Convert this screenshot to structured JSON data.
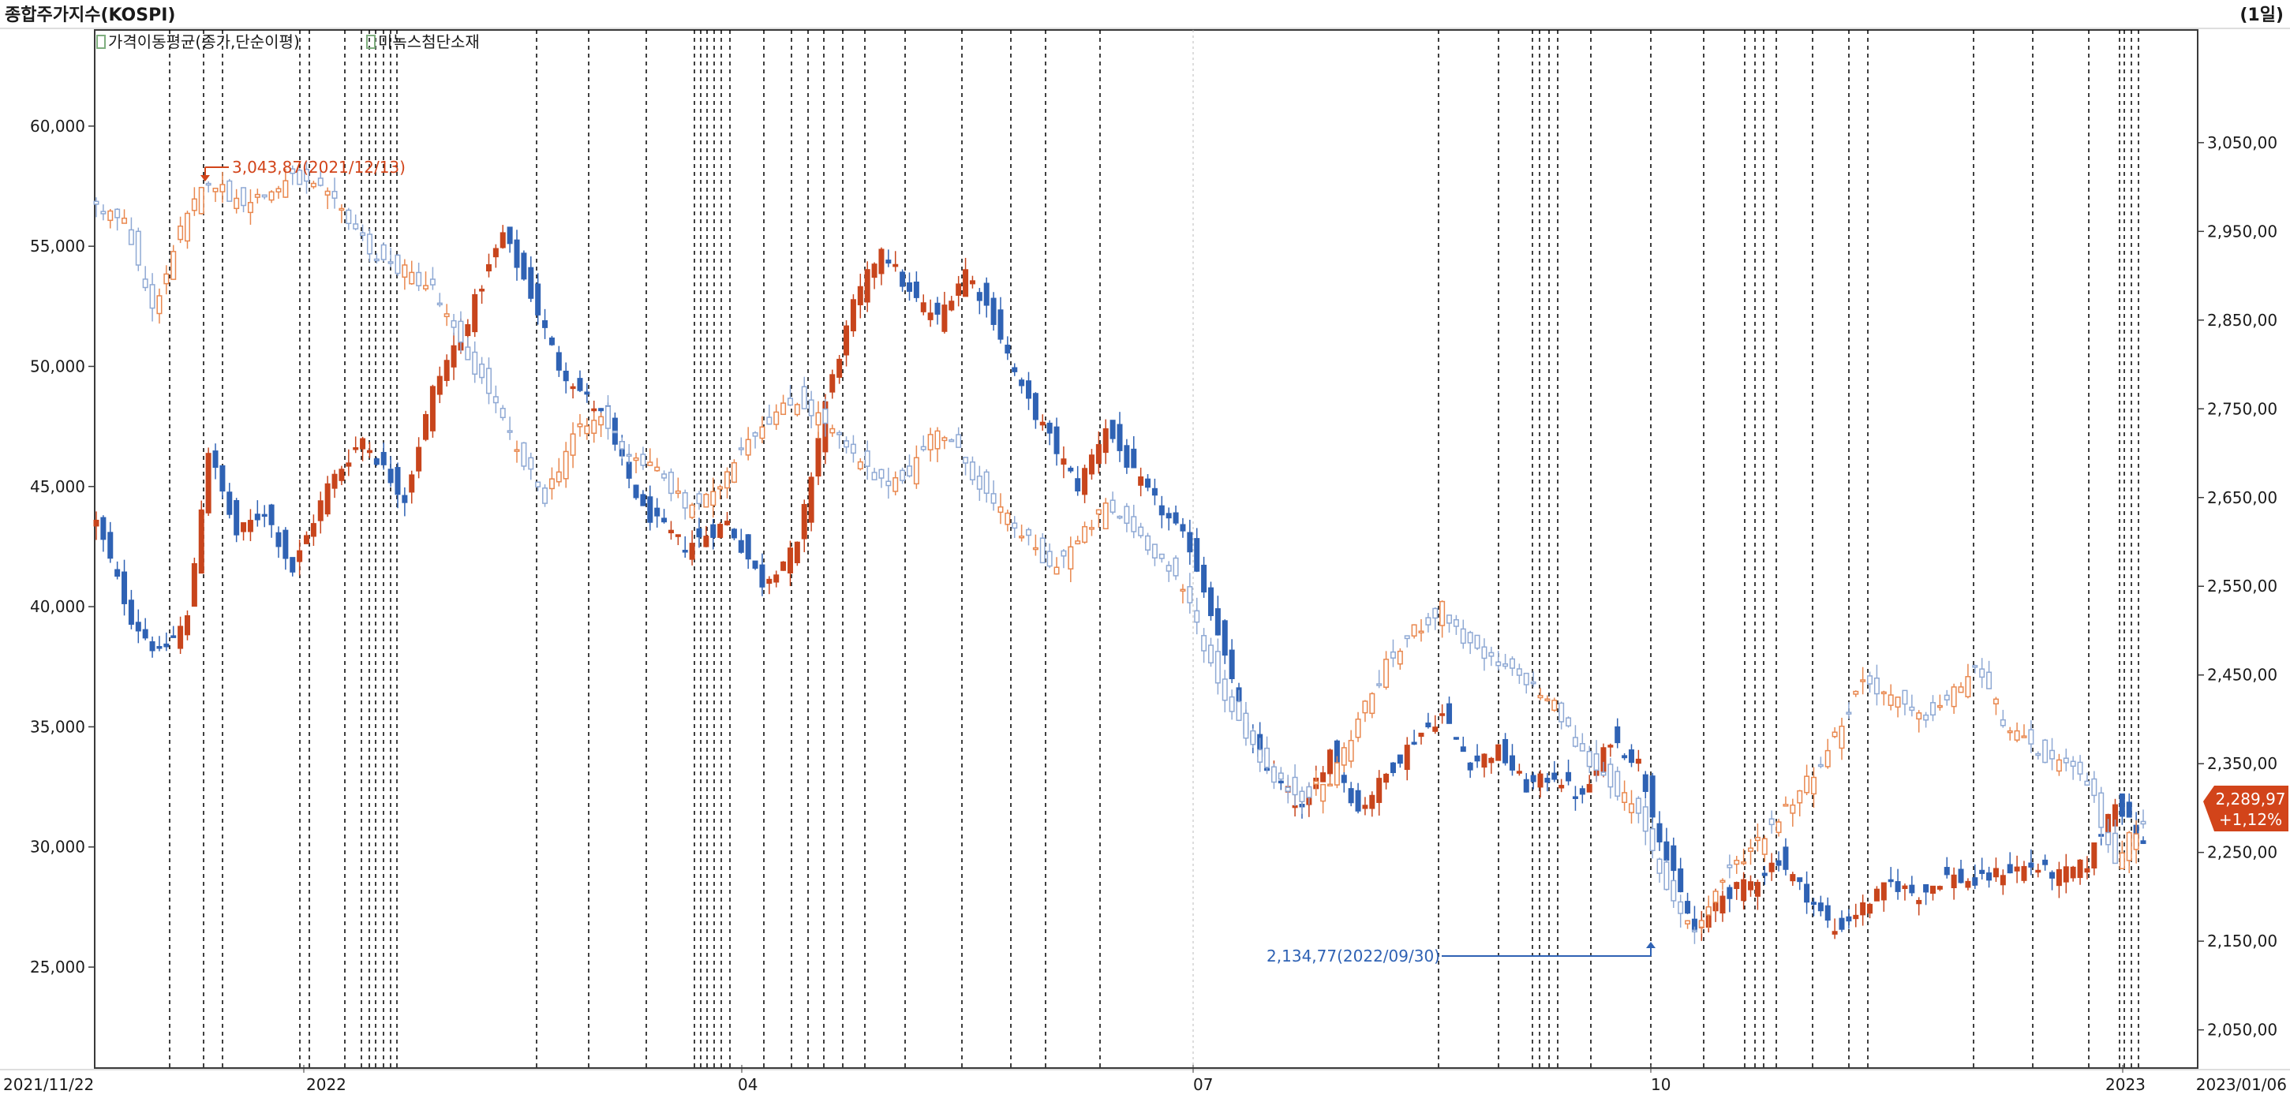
{
  "header": {
    "title": "종합주가지수(KOSPI)",
    "period": "(1일)"
  },
  "legend": [
    {
      "label": "가격이동평균(종가,단순이평)",
      "color": "#7fae7f"
    },
    {
      "label": "미녹스첨단소재",
      "color": "#7fae7f"
    }
  ],
  "colors": {
    "up": "#c8451c",
    "down": "#2f62b4",
    "up_light": "#e9884f",
    "down_light": "#8fa9d4",
    "grid": "#000000",
    "badge": "#d2441a"
  },
  "chart_data": {
    "type": "candlestick",
    "x_tick_labels": [
      "2021/11/22",
      "2022",
      "04",
      "07",
      "10",
      "2023",
      "2023/01/06"
    ],
    "left_axis": {
      "ticks": [
        25000,
        30000,
        35000,
        40000,
        45000,
        50000,
        55000,
        60000
      ],
      "tick_labels": [
        "25,000",
        "30,000",
        "35,000",
        "40,000",
        "45,000",
        "50,000",
        "55,000",
        "60,000"
      ],
      "range": [
        20800,
        64000
      ]
    },
    "right_axis": {
      "ticks": [
        2050,
        2150,
        2250,
        2350,
        2450,
        2550,
        2650,
        2750,
        2850,
        2950,
        3050
      ],
      "tick_labels": [
        "2,050,00",
        "2,150,00",
        "2,250,00",
        "2,350,00",
        "2,450,00",
        "2,550,00",
        "2,650,00",
        "2,750,00",
        "2,850,00",
        "2,950,00",
        "3,050,00"
      ],
      "range": [
        2007,
        3177
      ]
    },
    "annotations": {
      "high": {
        "text": "3,043,87(2021/12/13)",
        "value": 3043.87
      },
      "low": {
        "text": "2,134,77(2022/09/30)",
        "value": 2134.77
      }
    },
    "last_price": {
      "value": "2,289,97",
      "change": "+1,12%"
    },
    "series": [
      {
        "axis": "left",
        "style": "dark",
        "keypoints": [
          [
            0,
            43500
          ],
          [
            5,
            39500
          ],
          [
            9,
            38000
          ],
          [
            13,
            39500
          ],
          [
            16,
            46500
          ],
          [
            20,
            43000
          ],
          [
            24,
            44000
          ],
          [
            28,
            41500
          ],
          [
            33,
            45000
          ],
          [
            38,
            47000
          ],
          [
            44,
            44500
          ],
          [
            48,
            49000
          ],
          [
            53,
            52000
          ],
          [
            58,
            55500
          ],
          [
            62,
            53000
          ],
          [
            66,
            50000
          ],
          [
            72,
            48000
          ],
          [
            78,
            44000
          ],
          [
            84,
            42500
          ],
          [
            90,
            43500
          ],
          [
            95,
            41000
          ],
          [
            100,
            42500
          ],
          [
            104,
            48500
          ],
          [
            108,
            52500
          ],
          [
            112,
            55000
          ],
          [
            116,
            53000
          ],
          [
            120,
            52000
          ],
          [
            124,
            54000
          ],
          [
            128,
            52000
          ],
          [
            132,
            49000
          ],
          [
            136,
            47000
          ],
          [
            140,
            45000
          ],
          [
            144,
            47500
          ],
          [
            148,
            45500
          ],
          [
            152,
            44000
          ],
          [
            156,
            42500
          ],
          [
            160,
            39000
          ],
          [
            164,
            34500
          ],
          [
            168,
            33000
          ],
          [
            172,
            31500
          ],
          [
            176,
            34000
          ],
          [
            180,
            31500
          ],
          [
            184,
            33000
          ],
          [
            188,
            34500
          ],
          [
            192,
            35500
          ],
          [
            196,
            33500
          ],
          [
            200,
            34000
          ],
          [
            204,
            32500
          ],
          [
            208,
            33000
          ],
          [
            212,
            32000
          ],
          [
            216,
            34500
          ],
          [
            220,
            33500
          ],
          [
            224,
            29500
          ],
          [
            228,
            26500
          ],
          [
            232,
            28000
          ],
          [
            236,
            28500
          ],
          [
            240,
            29500
          ],
          [
            244,
            28000
          ],
          [
            248,
            26500
          ],
          [
            252,
            27500
          ],
          [
            256,
            28500
          ],
          [
            260,
            28000
          ],
          [
            264,
            28800
          ],
          [
            268,
            28500
          ],
          [
            272,
            29000
          ],
          [
            276,
            29200
          ],
          [
            280,
            28800
          ],
          [
            284,
            29300
          ],
          [
            288,
            32000
          ],
          [
            292,
            30000
          ]
        ]
      },
      {
        "axis": "right",
        "style": "light",
        "keypoints": [
          [
            0,
            2980
          ],
          [
            4,
            2960
          ],
          [
            8,
            2860
          ],
          [
            12,
            2950
          ],
          [
            16,
            3010
          ],
          [
            20,
            2985
          ],
          [
            24,
            2990
          ],
          [
            28,
            3010
          ],
          [
            32,
            2995
          ],
          [
            36,
            2965
          ],
          [
            40,
            2920
          ],
          [
            44,
            2905
          ],
          [
            48,
            2885
          ],
          [
            52,
            2820
          ],
          [
            56,
            2770
          ],
          [
            60,
            2700
          ],
          [
            64,
            2650
          ],
          [
            68,
            2720
          ],
          [
            72,
            2740
          ],
          [
            76,
            2700
          ],
          [
            80,
            2680
          ],
          [
            84,
            2640
          ],
          [
            88,
            2650
          ],
          [
            92,
            2710
          ],
          [
            96,
            2740
          ],
          [
            100,
            2760
          ],
          [
            104,
            2735
          ],
          [
            108,
            2695
          ],
          [
            112,
            2665
          ],
          [
            116,
            2680
          ],
          [
            120,
            2730
          ],
          [
            124,
            2690
          ],
          [
            128,
            2640
          ],
          [
            132,
            2610
          ],
          [
            136,
            2570
          ],
          [
            140,
            2600
          ],
          [
            144,
            2640
          ],
          [
            148,
            2615
          ],
          [
            152,
            2580
          ],
          [
            156,
            2530
          ],
          [
            160,
            2440
          ],
          [
            164,
            2385
          ],
          [
            168,
            2330
          ],
          [
            172,
            2315
          ],
          [
            176,
            2330
          ],
          [
            180,
            2400
          ],
          [
            184,
            2460
          ],
          [
            188,
            2500
          ],
          [
            192,
            2525
          ],
          [
            196,
            2480
          ],
          [
            200,
            2460
          ],
          [
            204,
            2445
          ],
          [
            208,
            2415
          ],
          [
            212,
            2360
          ],
          [
            216,
            2330
          ],
          [
            220,
            2290
          ],
          [
            224,
            2210
          ],
          [
            228,
            2160
          ],
          [
            232,
            2220
          ],
          [
            236,
            2255
          ],
          [
            240,
            2290
          ],
          [
            244,
            2330
          ],
          [
            248,
            2380
          ],
          [
            252,
            2445
          ],
          [
            256,
            2425
          ],
          [
            260,
            2400
          ],
          [
            264,
            2420
          ],
          [
            268,
            2460
          ],
          [
            272,
            2400
          ],
          [
            276,
            2365
          ],
          [
            280,
            2350
          ],
          [
            284,
            2330
          ],
          [
            288,
            2240
          ],
          [
            292,
            2290
          ]
        ]
      }
    ]
  }
}
